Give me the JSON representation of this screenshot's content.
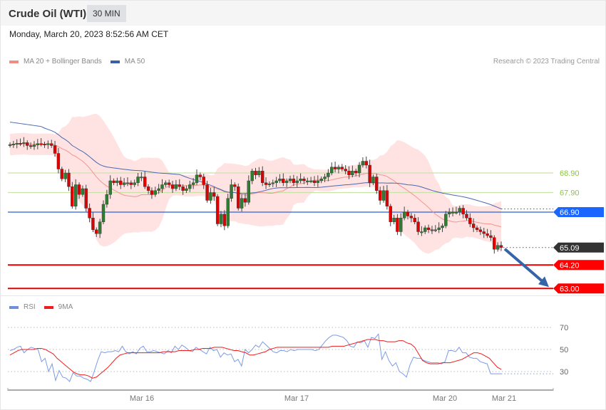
{
  "header": {
    "title": "Crude Oil (WTI)",
    "timeframe": "30 MIN",
    "datetime": "Monday, March 20, 2023 8:52:56 AM CET"
  },
  "legend_main": [
    {
      "label": "MA 20 + Bollinger Bands",
      "color": "#f28b82"
    },
    {
      "label": "MA 50",
      "color": "#3a5ea8"
    }
  ],
  "legend_rsi": [
    {
      "label": "RSI",
      "color": "#6d8fe0"
    },
    {
      "label": "9MA",
      "color": "#ee1c1c"
    }
  ],
  "credit": "Research © 2023 Trading Central",
  "chart_data": [
    {
      "type": "candlestick",
      "title": "Crude Oil (WTI) 30 MIN",
      "ylabel": "Price",
      "ylim": [
        62.8,
        71.2
      ],
      "levels": [
        {
          "value": 68.9,
          "label": "68.90",
          "kind": "resistance",
          "color": "#8cc63f",
          "line": "#c9e2a8"
        },
        {
          "value": 67.9,
          "label": "67.90",
          "kind": "resistance",
          "color": "#8cc63f",
          "line": "#c9e2a8"
        },
        {
          "value": 66.9,
          "label": "66.90",
          "kind": "pivot",
          "color": "#1a66ff",
          "line": "#2b62d9"
        },
        {
          "value": 65.09,
          "label": "65.09",
          "kind": "last",
          "color": "#333333"
        },
        {
          "value": 64.2,
          "label": "64.20",
          "kind": "support",
          "color": "#ff0000",
          "line": "#e60000"
        },
        {
          "value": 63.0,
          "label": "63.00",
          "kind": "support",
          "color": "#ff0000",
          "line": "#e60000"
        }
      ],
      "closes": [
        70.35,
        70.38,
        70.42,
        70.4,
        70.45,
        70.3,
        70.25,
        70.33,
        70.4,
        70.38,
        70.35,
        70.4,
        70.3,
        69.9,
        69.1,
        68.6,
        68.9,
        68.2,
        67.2,
        68.3,
        67.8,
        68.1,
        67.1,
        66.6,
        66.0,
        65.8,
        66.4,
        67.3,
        67.8,
        68.5,
        68.4,
        68.5,
        68.3,
        68.4,
        68.4,
        68.3,
        68.4,
        68.7,
        68.7,
        68.2,
        68.0,
        67.8,
        68.0,
        68.1,
        68.3,
        68.4,
        68.3,
        68.1,
        68.3,
        68.2,
        68.0,
        68.1,
        68.3,
        68.4,
        68.8,
        68.7,
        68.3,
        67.5,
        67.9,
        67.7,
        66.3,
        66.8,
        66.2,
        67.6,
        68.3,
        68.2,
        67.1,
        67.6,
        67.4,
        68.5,
        69.0,
        68.8,
        69.0,
        68.4,
        68.3,
        68.35,
        68.4,
        68.5,
        68.6,
        68.4,
        68.5,
        68.6,
        68.4,
        68.5,
        68.6,
        68.5,
        68.5,
        68.5,
        68.4,
        68.5,
        68.6,
        68.7,
        68.9,
        69.2,
        69.1,
        69.2,
        69.1,
        69.0,
        68.8,
        69.0,
        68.9,
        69.3,
        69.5,
        69.3,
        68.4,
        68.7,
        68.0,
        67.5,
        68.0,
        67.2,
        66.4,
        66.6,
        65.9,
        66.6,
        66.9,
        66.7,
        66.6,
        66.4,
        65.9,
        65.9,
        66.1,
        66.0,
        66.0,
        66.0,
        66.1,
        66.2,
        66.8,
        66.9,
        66.9,
        66.9,
        67.1,
        66.8,
        66.6,
        66.3,
        66.1,
        66.0,
        65.9,
        65.8,
        65.7,
        65.6,
        65.0,
        65.2,
        65.09
      ],
      "ma20_note": "pink line inside Bollinger band",
      "forecast_arrow": {
        "from": 65.09,
        "to": 63.0,
        "color": "#3565a8"
      }
    },
    {
      "type": "line",
      "title": "RSI",
      "ylim": [
        10,
        80
      ],
      "gridlines": [
        70,
        50,
        30
      ],
      "tick_labels": [
        "70",
        "50",
        "30"
      ],
      "series": [
        {
          "name": "RSI",
          "color": "#7b9be6",
          "values": [
            49,
            50,
            52,
            53,
            47,
            50,
            52,
            51,
            50,
            39,
            42,
            30,
            37,
            22,
            31,
            25,
            24,
            21,
            29,
            26,
            26,
            24,
            23,
            21,
            30,
            40,
            48,
            47,
            48,
            48,
            49,
            48,
            53,
            48,
            46,
            48,
            46,
            51,
            53,
            48,
            48,
            49,
            48,
            47,
            46,
            49,
            47,
            53,
            50,
            54,
            52,
            49,
            48,
            52,
            50,
            48,
            46,
            52,
            49,
            50,
            43,
            47,
            45,
            46,
            39,
            41,
            35,
            50,
            47,
            50,
            54,
            52,
            57,
            54,
            51,
            48,
            47,
            49,
            49,
            48,
            50,
            49,
            50,
            50,
            50,
            50,
            50,
            49,
            50,
            54,
            58,
            61,
            63,
            63,
            62,
            61,
            58,
            53,
            52,
            57,
            56,
            58,
            52,
            61,
            60,
            64,
            41,
            48,
            40,
            35,
            38,
            30,
            28,
            25,
            36,
            43,
            42,
            42,
            40,
            39,
            38,
            38,
            38,
            37,
            39,
            49,
            49,
            48,
            52,
            47,
            47,
            43,
            42,
            42,
            39,
            38,
            37,
            28,
            28,
            28,
            28
          ],
          "dotted_tail": 28
        },
        {
          "name": "9MA",
          "color": "#ee1c1c",
          "values": [
            45,
            47,
            49,
            50,
            50,
            50,
            50,
            51,
            51,
            50,
            48,
            46,
            42,
            39,
            36,
            33,
            30,
            28,
            27,
            27,
            26,
            24,
            25,
            28,
            31,
            34,
            38,
            42,
            45,
            46,
            47,
            47,
            47,
            47,
            47,
            47,
            47,
            47,
            47,
            48,
            48,
            48,
            48,
            49,
            49,
            49,
            49,
            50,
            50,
            51,
            51,
            51,
            52,
            52,
            52,
            51,
            50,
            49,
            49,
            48,
            47,
            45,
            45,
            46,
            47,
            48,
            50,
            51,
            52,
            52,
            52,
            52,
            52,
            52,
            52,
            52,
            52,
            52,
            52,
            52,
            52,
            52,
            53,
            53,
            53,
            53,
            54,
            55,
            56,
            57,
            58,
            59,
            59,
            59,
            58,
            58,
            57,
            57,
            57,
            58,
            58,
            56,
            55,
            52,
            46,
            40,
            38,
            37,
            37,
            37,
            38,
            38,
            38,
            39,
            40,
            41,
            43,
            45,
            47,
            47,
            46,
            44,
            42,
            38,
            34,
            32
          ]
        }
      ],
      "x_ticks": [
        "Mar 16",
        "Mar 17",
        "Mar 20",
        "Mar 21"
      ]
    }
  ]
}
